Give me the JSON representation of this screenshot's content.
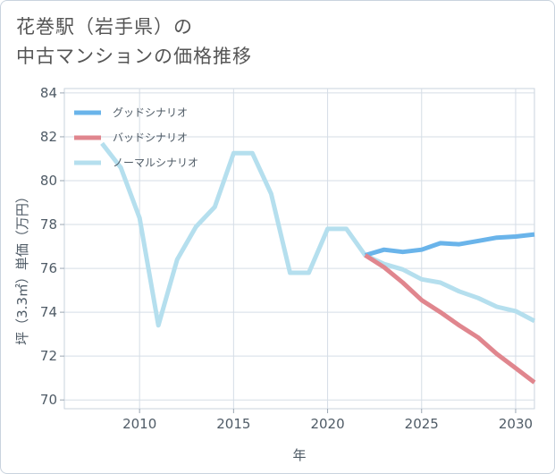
{
  "title_line1": "花巻駅（岩手県）の",
  "title_line2": "中古マンションの価格推移",
  "chart_data": {
    "type": "line",
    "xlabel": "年",
    "ylabel": "坪（3.3㎡）単価（万円）",
    "xlim": [
      2006,
      2031
    ],
    "ylim": [
      69.6,
      84.2
    ],
    "xticks": [
      2010,
      2015,
      2020,
      2025,
      2030
    ],
    "yticks": [
      70,
      72,
      74,
      76,
      78,
      80,
      82,
      84
    ],
    "grid": true,
    "legend_position": "top-left",
    "series": [
      {
        "name": "グッドシナリオ",
        "color": "#6ab4ea",
        "x": [
          2022,
          2023,
          2024,
          2025,
          2026,
          2027,
          2028,
          2029,
          2030,
          2031
        ],
        "y": [
          76.6,
          76.85,
          76.75,
          76.85,
          77.15,
          77.1,
          77.25,
          77.4,
          77.45,
          77.55
        ]
      },
      {
        "name": "バッドシナリオ",
        "color": "#e0868e",
        "x": [
          2022,
          2023,
          2024,
          2025,
          2026,
          2027,
          2028,
          2029,
          2030,
          2031
        ],
        "y": [
          76.6,
          76.05,
          75.35,
          74.55,
          74.0,
          73.4,
          72.85,
          72.1,
          71.45,
          70.8
        ]
      },
      {
        "name": "ノーマルシナリオ",
        "color": "#b5dfee",
        "x": [
          2008,
          2009,
          2010,
          2011,
          2012,
          2013,
          2014,
          2015,
          2016,
          2017,
          2018,
          2019,
          2020,
          2021,
          2022,
          2023,
          2024,
          2025,
          2026,
          2027,
          2028,
          2029,
          2030,
          2031
        ],
        "y": [
          81.7,
          80.6,
          78.3,
          73.4,
          76.4,
          77.9,
          78.8,
          81.25,
          81.25,
          79.4,
          75.8,
          75.8,
          77.8,
          77.8,
          76.6,
          76.2,
          75.95,
          75.5,
          75.35,
          74.95,
          74.65,
          74.25,
          74.05,
          73.6
        ]
      }
    ]
  }
}
